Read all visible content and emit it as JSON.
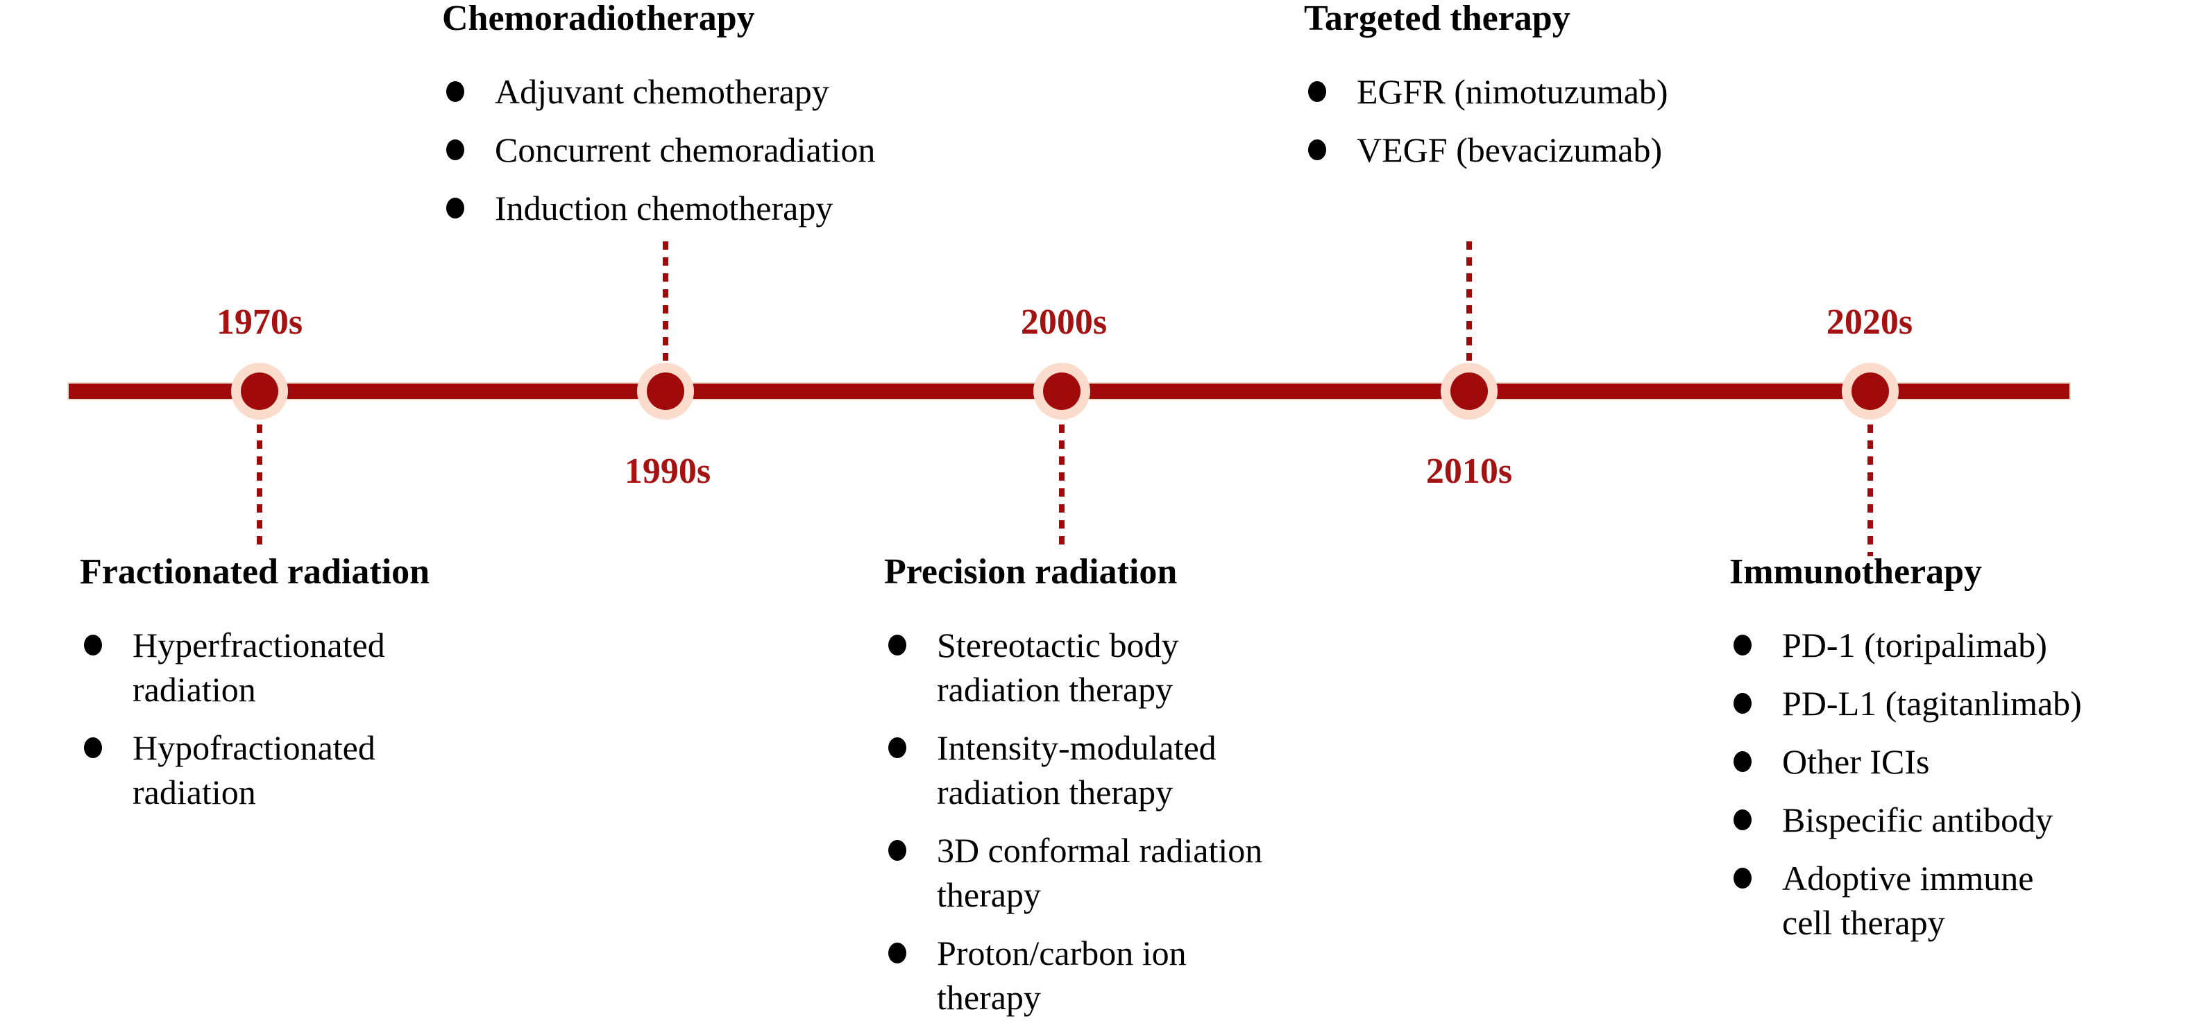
{
  "timeline": {
    "accent_color": "#A10A0A",
    "node_ring_color": "#FBDCCC",
    "year_text_color": "#A41212",
    "years": [
      "1970s",
      "1990s",
      "2000s",
      "2010s",
      "2020s"
    ]
  },
  "blocks": [
    {
      "id": "fractionated-radiation",
      "year": "1970s",
      "side": "below",
      "title": "Fractionated radiation",
      "items": [
        [
          "Hyperfractionated",
          "radiation"
        ],
        [
          "Hypofractionated",
          "radiation"
        ]
      ]
    },
    {
      "id": "chemoradiotherapy",
      "year": "1990s",
      "side": "above",
      "title": "Chemoradiotherapy",
      "items": [
        [
          "Adjuvant chemotherapy"
        ],
        [
          "Concurrent chemoradiation"
        ],
        [
          "Induction chemotherapy"
        ]
      ]
    },
    {
      "id": "precision-radiation",
      "year": "2000s",
      "side": "below",
      "title": "Precision radiation",
      "items": [
        [
          "Stereotactic body",
          "radiation therapy"
        ],
        [
          "Intensity-modulated",
          "radiation therapy"
        ],
        [
          "3D conformal radiation",
          "therapy"
        ],
        [
          "Proton/carbon ion",
          "therapy"
        ]
      ]
    },
    {
      "id": "targeted-therapy",
      "year": "2010s",
      "side": "above",
      "title": "Targeted therapy",
      "items": [
        [
          "EGFR (nimotuzumab)"
        ],
        [
          "VEGF (bevacizumab)"
        ]
      ]
    },
    {
      "id": "immunotherapy",
      "year": "2020s",
      "side": "below",
      "title": "Immunotherapy",
      "items": [
        [
          "PD-1 (toripalimab)"
        ],
        [
          "PD-L1 (tagitanlimab)"
        ],
        [
          "Other ICIs"
        ],
        [
          "Bispecific antibody"
        ],
        [
          "Adoptive immune",
          "cell therapy"
        ]
      ]
    }
  ]
}
